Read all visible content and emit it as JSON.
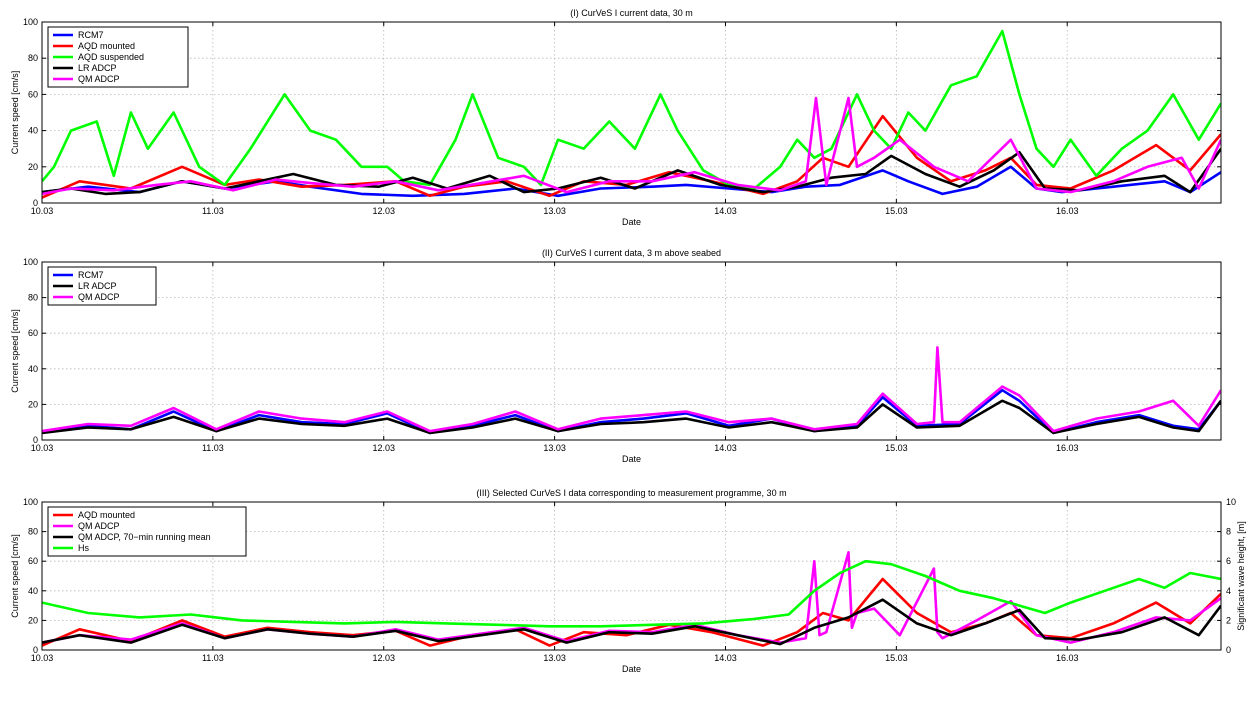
{
  "figure": {
    "background": "#ffffff"
  },
  "chart_data": [
    {
      "type": "line",
      "title": "(I) CurVeS I current data, 30 m",
      "xlabel": "Date",
      "ylabel": "Current speed [cm/s]",
      "xlim": [
        10.03,
        16.93
      ],
      "ylim": [
        0,
        100
      ],
      "x_ticks": [
        "10.03",
        "11.03",
        "12.03",
        "13.03",
        "14.03",
        "15.03",
        "16.03"
      ],
      "y_ticks": [
        "0",
        "20",
        "40",
        "60",
        "80",
        "100"
      ],
      "grid": true,
      "legend_position": "top-left",
      "series": [
        {
          "name": "RCM7",
          "color": "#0000ff",
          "x": [
            10.03,
            10.3,
            10.6,
            10.85,
            11.1,
            11.4,
            11.6,
            11.9,
            12.2,
            12.5,
            12.8,
            13.05,
            13.3,
            13.6,
            13.8,
            14.05,
            14.3,
            14.5,
            14.7,
            14.95,
            15.1,
            15.3,
            15.5,
            15.7,
            15.85,
            16.0,
            16.3,
            16.6,
            16.75,
            16.93
          ],
          "y": [
            6,
            9,
            6,
            12,
            8,
            12,
            9,
            5,
            4,
            5,
            8,
            4,
            8,
            9,
            10,
            8,
            6,
            9,
            10,
            18,
            12,
            5,
            9,
            20,
            8,
            6,
            9,
            12,
            6,
            17
          ]
        },
        {
          "name": "AQD mounted",
          "color": "#ff0000",
          "x": [
            10.03,
            10.25,
            10.55,
            10.85,
            11.1,
            11.3,
            11.55,
            11.8,
            12.1,
            12.3,
            12.5,
            12.75,
            13.0,
            13.2,
            13.45,
            13.7,
            13.95,
            14.25,
            14.45,
            14.6,
            14.75,
            14.95,
            15.15,
            15.35,
            15.55,
            15.7,
            15.85,
            16.05,
            16.3,
            16.55,
            16.75,
            16.93
          ],
          "y": [
            3,
            12,
            8,
            20,
            10,
            13,
            9,
            10,
            12,
            4,
            9,
            12,
            4,
            12,
            10,
            17,
            12,
            5,
            12,
            25,
            20,
            48,
            25,
            12,
            18,
            25,
            10,
            8,
            18,
            32,
            18,
            38
          ]
        },
        {
          "name": "AQD suspended",
          "color": "#00ff00",
          "x": [
            10.03,
            10.1,
            10.2,
            10.35,
            10.45,
            10.55,
            10.65,
            10.8,
            10.95,
            11.1,
            11.25,
            11.45,
            11.6,
            11.75,
            11.9,
            12.05,
            12.15,
            12.3,
            12.45,
            12.55,
            12.7,
            12.85,
            12.95,
            13.05,
            13.2,
            13.35,
            13.5,
            13.65,
            13.75,
            13.9,
            14.05,
            14.2,
            14.35,
            14.45,
            14.55,
            14.65,
            14.8,
            14.9,
            15.0,
            15.1,
            15.2,
            15.35,
            15.5,
            15.65,
            15.75,
            15.85,
            15.95,
            16.05,
            16.2,
            16.35,
            16.5,
            16.65,
            16.8,
            16.93
          ],
          "y": [
            12,
            20,
            40,
            45,
            15,
            50,
            30,
            50,
            20,
            10,
            30,
            60,
            40,
            35,
            20,
            20,
            12,
            10,
            35,
            60,
            25,
            20,
            10,
            35,
            30,
            45,
            30,
            60,
            40,
            18,
            10,
            8,
            20,
            35,
            25,
            30,
            60,
            40,
            30,
            50,
            40,
            65,
            70,
            95,
            60,
            30,
            20,
            35,
            15,
            30,
            40,
            60,
            35,
            55
          ]
        },
        {
          "name": "LR ADCP",
          "color": "#000000",
          "x": [
            10.03,
            10.2,
            10.4,
            10.6,
            10.85,
            11.1,
            11.3,
            11.5,
            11.75,
            12.0,
            12.2,
            12.4,
            12.65,
            12.85,
            13.05,
            13.3,
            13.5,
            13.75,
            14.0,
            14.25,
            14.45,
            14.65,
            14.85,
            15.0,
            15.2,
            15.4,
            15.6,
            15.75,
            15.9,
            16.1,
            16.35,
            16.6,
            16.75,
            16.93
          ],
          "y": [
            6,
            8,
            5,
            6,
            12,
            8,
            12,
            16,
            10,
            9,
            14,
            8,
            15,
            6,
            8,
            14,
            8,
            18,
            10,
            6,
            9,
            14,
            16,
            26,
            16,
            9,
            18,
            28,
            8,
            7,
            12,
            15,
            6,
            30
          ]
        },
        {
          "name": "QM ADCP",
          "color": "#ff00ff",
          "x": [
            10.03,
            10.2,
            10.45,
            10.7,
            10.9,
            11.15,
            11.4,
            11.6,
            11.85,
            12.1,
            12.35,
            12.6,
            12.85,
            13.1,
            13.35,
            13.6,
            13.85,
            14.1,
            14.35,
            14.5,
            14.56,
            14.62,
            14.75,
            14.8,
            14.9,
            15.05,
            15.25,
            15.45,
            15.7,
            15.85,
            16.05,
            16.3,
            16.5,
            16.7,
            16.8,
            16.93
          ],
          "y": [
            5,
            8,
            7,
            10,
            12,
            7,
            13,
            11,
            9,
            12,
            7,
            11,
            15,
            6,
            12,
            12,
            17,
            10,
            7,
            12,
            58,
            10,
            58,
            20,
            25,
            35,
            20,
            12,
            35,
            8,
            6,
            12,
            20,
            25,
            8,
            35
          ]
        }
      ]
    },
    {
      "type": "line",
      "title": "(II) CurVeS I current data, 3 m above seabed",
      "xlabel": "Date",
      "ylabel": "Current speed [cm/s]",
      "xlim": [
        10.03,
        16.93
      ],
      "ylim": [
        0,
        100
      ],
      "x_ticks": [
        "10.03",
        "11.03",
        "12.03",
        "13.03",
        "14.03",
        "15.03",
        "16.03"
      ],
      "y_ticks": [
        "0",
        "20",
        "40",
        "60",
        "80",
        "100"
      ],
      "grid": true,
      "legend_position": "top-left",
      "series": [
        {
          "name": "RCM7",
          "color": "#0000ff",
          "x": [
            10.03,
            10.3,
            10.55,
            10.8,
            11.05,
            11.3,
            11.55,
            11.8,
            12.05,
            12.3,
            12.55,
            12.8,
            13.05,
            13.3,
            13.55,
            13.8,
            14.05,
            14.3,
            14.55,
            14.8,
            14.95,
            15.15,
            15.4,
            15.65,
            15.75,
            15.95,
            16.2,
            16.45,
            16.65,
            16.8,
            16.93
          ],
          "y": [
            4,
            8,
            6,
            16,
            5,
            14,
            10,
            9,
            15,
            4,
            8,
            14,
            5,
            10,
            12,
            15,
            8,
            12,
            5,
            8,
            24,
            8,
            9,
            28,
            22,
            4,
            10,
            14,
            8,
            6,
            22
          ]
        },
        {
          "name": "LR ADCP",
          "color": "#000000",
          "x": [
            10.03,
            10.3,
            10.55,
            10.8,
            11.05,
            11.3,
            11.55,
            11.8,
            12.05,
            12.3,
            12.55,
            12.8,
            13.05,
            13.3,
            13.55,
            13.8,
            14.05,
            14.3,
            14.55,
            14.8,
            14.95,
            15.15,
            15.4,
            15.65,
            15.75,
            15.95,
            16.2,
            16.45,
            16.65,
            16.8,
            16.93
          ],
          "y": [
            4,
            7,
            6,
            13,
            5,
            12,
            9,
            8,
            12,
            4,
            7,
            12,
            5,
            9,
            10,
            12,
            7,
            10,
            5,
            7,
            20,
            7,
            8,
            22,
            18,
            4,
            9,
            13,
            7,
            5,
            22
          ]
        },
        {
          "name": "QM ADCP",
          "color": "#ff00ff",
          "x": [
            10.03,
            10.3,
            10.55,
            10.8,
            11.05,
            11.3,
            11.55,
            11.8,
            12.05,
            12.3,
            12.55,
            12.8,
            13.05,
            13.3,
            13.55,
            13.8,
            14.05,
            14.3,
            14.55,
            14.8,
            14.95,
            15.15,
            15.25,
            15.27,
            15.3,
            15.4,
            15.65,
            15.75,
            15.95,
            16.2,
            16.45,
            16.65,
            16.8,
            16.93
          ],
          "y": [
            5,
            9,
            8,
            18,
            6,
            16,
            12,
            10,
            16,
            5,
            9,
            16,
            6,
            12,
            14,
            16,
            10,
            12,
            6,
            9,
            26,
            9,
            10,
            52,
            10,
            10,
            30,
            25,
            5,
            12,
            16,
            22,
            8,
            28
          ]
        }
      ]
    },
    {
      "type": "line",
      "title": "(III) Selected CurVeS I data corresponding to measurement programme, 30 m",
      "xlabel": "Date",
      "ylabel": "Current speed [cm/s]",
      "ylabel_right": "Significant wave height, [m]",
      "xlim": [
        10.03,
        16.93
      ],
      "ylim": [
        0,
        100
      ],
      "ylim_right": [
        0,
        10
      ],
      "x_ticks": [
        "10.03",
        "11.03",
        "12.03",
        "13.03",
        "14.03",
        "15.03",
        "16.03"
      ],
      "y_ticks": [
        "0",
        "20",
        "40",
        "60",
        "80",
        "100"
      ],
      "y_ticks_right": [
        "0",
        "2",
        "4",
        "6",
        "8",
        "10"
      ],
      "grid": true,
      "legend_position": "top-left",
      "series": [
        {
          "name": "AQD mounted",
          "color": "#ff0000",
          "x": [
            10.03,
            10.25,
            10.55,
            10.85,
            11.1,
            11.35,
            11.6,
            11.85,
            12.1,
            12.3,
            12.55,
            12.8,
            13.0,
            13.2,
            13.45,
            13.7,
            13.95,
            14.25,
            14.45,
            14.6,
            14.75,
            14.95,
            15.15,
            15.35,
            15.55,
            15.7,
            15.85,
            16.05,
            16.3,
            16.55,
            16.75,
            16.93
          ],
          "y": [
            3,
            14,
            6,
            20,
            9,
            15,
            12,
            10,
            13,
            3,
            10,
            14,
            3,
            12,
            10,
            17,
            12,
            3,
            12,
            25,
            20,
            48,
            25,
            12,
            18,
            25,
            10,
            8,
            18,
            32,
            18,
            38
          ]
        },
        {
          "name": "QM ADCP",
          "color": "#ff00ff",
          "x": [
            10.03,
            10.25,
            10.55,
            10.85,
            11.1,
            11.35,
            11.6,
            11.85,
            12.1,
            12.35,
            12.6,
            12.85,
            13.1,
            13.35,
            13.6,
            13.85,
            14.1,
            14.35,
            14.5,
            14.55,
            14.58,
            14.62,
            14.75,
            14.77,
            14.8,
            14.9,
            15.05,
            15.25,
            15.27,
            15.3,
            15.5,
            15.7,
            15.85,
            16.05,
            16.3,
            16.55,
            16.75,
            16.93
          ],
          "y": [
            5,
            10,
            7,
            18,
            8,
            14,
            11,
            9,
            14,
            7,
            11,
            15,
            6,
            13,
            12,
            17,
            10,
            5,
            8,
            60,
            10,
            12,
            66,
            15,
            25,
            28,
            10,
            55,
            12,
            8,
            20,
            33,
            10,
            5,
            12,
            22,
            20,
            35
          ]
        },
        {
          "name": "QM ADCP, 70−min running mean",
          "color": "#000000",
          "x": [
            10.03,
            10.25,
            10.55,
            10.85,
            11.1,
            11.35,
            11.6,
            11.85,
            12.1,
            12.35,
            12.6,
            12.85,
            13.1,
            13.35,
            13.6,
            13.85,
            14.1,
            14.35,
            14.55,
            14.75,
            14.95,
            15.15,
            15.35,
            15.55,
            15.75,
            15.9,
            16.1,
            16.35,
            16.6,
            16.8,
            16.93
          ],
          "y": [
            5,
            10,
            5,
            17,
            8,
            14,
            11,
            9,
            13,
            6,
            10,
            14,
            5,
            12,
            11,
            16,
            10,
            4,
            15,
            22,
            34,
            18,
            10,
            18,
            27,
            8,
            7,
            12,
            22,
            10,
            30
          ]
        },
        {
          "name": "Hs",
          "color": "#00ff00",
          "axis": "right",
          "x": [
            10.03,
            10.3,
            10.6,
            10.9,
            11.2,
            11.5,
            11.8,
            12.1,
            12.4,
            12.7,
            13.0,
            13.3,
            13.6,
            13.9,
            14.2,
            14.4,
            14.55,
            14.7,
            14.85,
            15.0,
            15.2,
            15.4,
            15.6,
            15.75,
            15.9,
            16.05,
            16.25,
            16.45,
            16.6,
            16.75,
            16.93
          ],
          "y": [
            3.2,
            2.5,
            2.2,
            2.4,
            2.0,
            1.9,
            1.8,
            1.9,
            1.8,
            1.7,
            1.6,
            1.6,
            1.7,
            1.8,
            2.1,
            2.4,
            4.0,
            5.2,
            6.0,
            5.8,
            5.0,
            4.0,
            3.5,
            3.0,
            2.5,
            3.2,
            4.0,
            4.8,
            4.2,
            5.2,
            4.8
          ]
        }
      ]
    }
  ]
}
